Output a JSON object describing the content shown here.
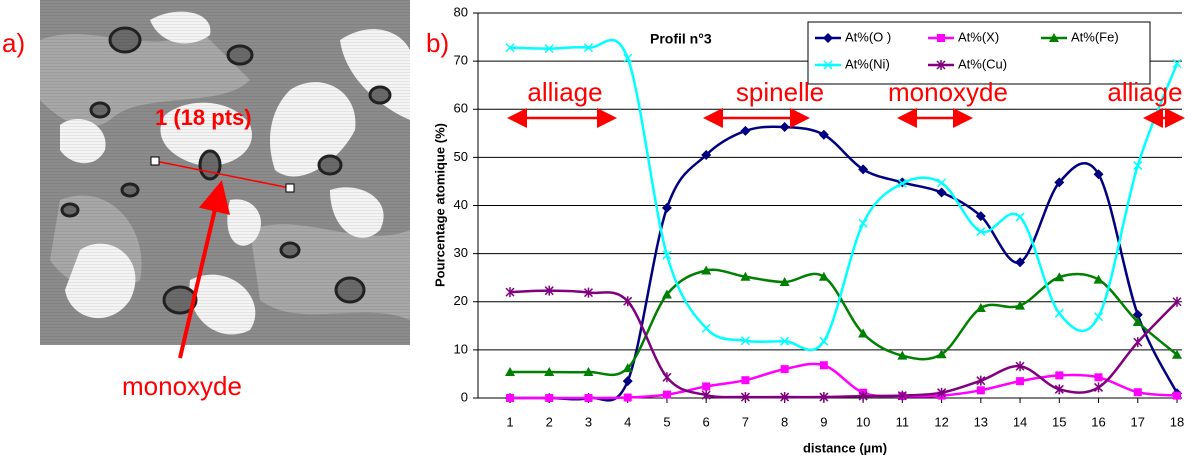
{
  "panel_a": {
    "label": "a)",
    "annotation": "1 (18 pts)",
    "callout": "monoxyde"
  },
  "panel_b_label": "b)",
  "chart_data": {
    "type": "line",
    "title": "Profil n°3",
    "x_label": "distance (µm)",
    "y_label": "Pourcentage atomique (%)",
    "categories": [
      "1",
      "2",
      "3",
      "4",
      "5",
      "6",
      "7",
      "8",
      "9",
      "10",
      "11",
      "12",
      "13",
      "14",
      "15",
      "16",
      "17",
      "18"
    ],
    "ylim": [
      0,
      80
    ],
    "yticks": [
      0,
      10,
      20,
      30,
      40,
      50,
      60,
      70,
      80
    ],
    "grid": true,
    "smooth": true,
    "series": [
      {
        "name": "At%(O )",
        "color": "#000080",
        "marker": "diamond",
        "values": [
          0,
          0,
          0,
          3.5,
          39.5,
          50.5,
          55.5,
          56.3,
          54.7,
          47.5,
          44.8,
          42.7,
          37.8,
          28.2,
          44.8,
          46.5,
          17.3,
          1
        ]
      },
      {
        "name": "At%(X)",
        "color": "#ff00ff",
        "marker": "square",
        "values": [
          0,
          0,
          0,
          0.1,
          0.7,
          2.4,
          3.7,
          6,
          6.8,
          1.1,
          0.4,
          0.5,
          1.6,
          3.5,
          4.7,
          4.3,
          1.2,
          0.5
        ]
      },
      {
        "name": "At%(Fe)",
        "color": "#008000",
        "marker": "triangle",
        "values": [
          5.4,
          5.4,
          5.4,
          6.2,
          21.5,
          26.5,
          25.2,
          24.1,
          25.2,
          13.4,
          8.8,
          9.1,
          18.7,
          19.2,
          25.1,
          24.6,
          15.8,
          9
        ]
      },
      {
        "name": "At%(Ni)",
        "color": "#00ffff",
        "marker": "x",
        "values": [
          72.8,
          72.6,
          72.8,
          70.6,
          29.7,
          14.5,
          11.9,
          11.8,
          11.8,
          36.3,
          44.6,
          44.7,
          34.6,
          37.6,
          17.6,
          16.9,
          48.3,
          69.5
        ]
      },
      {
        "name": "At%(Cu)",
        "color": "#800080",
        "marker": "star",
        "values": [
          22,
          22.3,
          21.9,
          20.1,
          4.3,
          0.6,
          0.2,
          0.2,
          0.2,
          0.4,
          0.5,
          1.1,
          3.6,
          6.6,
          1.8,
          2.2,
          11.6,
          20
        ]
      }
    ],
    "annotations": [
      "alliage",
      "spinelle",
      "monoxyde",
      "alliage"
    ]
  }
}
